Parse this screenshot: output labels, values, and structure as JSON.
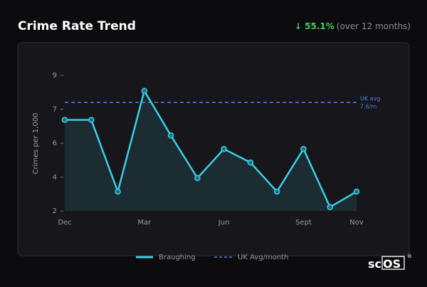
{
  "chart_data": {
    "type": "line",
    "title": "Crime Rate Trend",
    "change": "↓ 55.1%",
    "period": "(over 12 months)",
    "y_label": "Crimes per 1,000",
    "categories": [
      "Dec",
      null,
      null,
      "Mar",
      null,
      null,
      "Jun",
      null,
      null,
      "Sept",
      null,
      "Nov"
    ],
    "series": [
      {
        "name": "Braughing",
        "color": "#3dcde6",
        "values": [
          6.7,
          6.7,
          3.0,
          8.2,
          5.9,
          3.7,
          5.2,
          4.5,
          3.0,
          5.2,
          2.2,
          3.0
        ]
      }
    ],
    "reference": {
      "name": "UK Avg/month",
      "value": 7.6,
      "color": "#4d82e6",
      "label": [
        "UK avg",
        "7.6/m"
      ]
    },
    "ylim": [
      2,
      9
    ],
    "yticks": [
      2,
      {
        "value": 3.75,
        "label": "4"
      },
      {
        "value": 5.5,
        "label": "6"
      },
      {
        "value": 7.25,
        "label": "7"
      },
      9
    ],
    "logo": {
      "text": "sc",
      "boxed": "OS",
      "mark": "®"
    }
  }
}
